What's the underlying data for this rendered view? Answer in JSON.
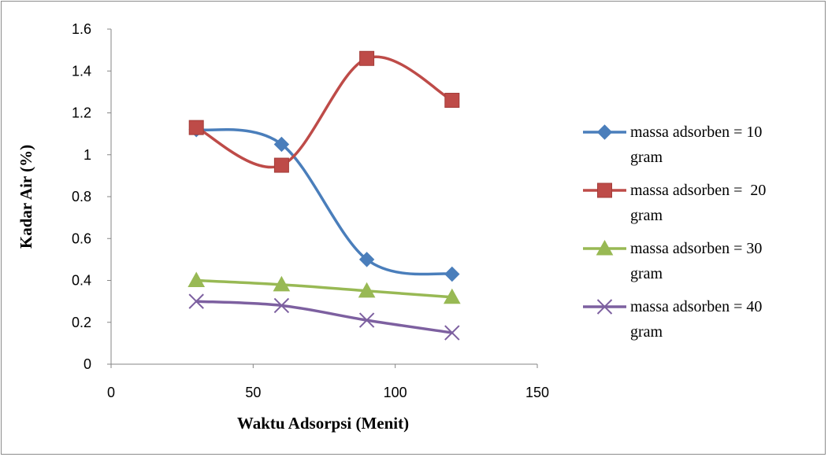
{
  "chart_data": {
    "type": "line",
    "smooth": true,
    "title": "",
    "xlabel": "Waktu Adsorpsi (Menit)",
    "ylabel": "Kadar Air (%)",
    "xlim": [
      0,
      150
    ],
    "ylim": [
      0,
      1.6
    ],
    "xticks": [
      0,
      50,
      100,
      150
    ],
    "yticks": [
      0,
      0.2,
      0.4,
      0.6,
      0.8,
      1,
      1.2,
      1.4,
      1.6
    ],
    "xtick_labels": [
      "0",
      "50",
      "100",
      "150"
    ],
    "ytick_labels": [
      "0",
      "0.2",
      "0.4",
      "0.6",
      "0.8",
      "1",
      "1.2",
      "1.4",
      "1.6"
    ],
    "grid": false,
    "legend_position": "right",
    "x": [
      30,
      60,
      90,
      120
    ],
    "series": [
      {
        "name_lines": [
          "massa adsorben = 10",
          "gram"
        ],
        "color": "#4a7ebb",
        "marker": "diamond",
        "values": [
          1.12,
          1.05,
          0.5,
          0.43
        ]
      },
      {
        "name_lines": [
          "massa adsorben =  20",
          "gram"
        ],
        "color": "#be4b48",
        "marker": "square",
        "values": [
          1.13,
          0.95,
          1.46,
          1.26
        ]
      },
      {
        "name_lines": [
          "massa adsorben = 30",
          "gram"
        ],
        "color": "#98b954",
        "marker": "triangle",
        "values": [
          0.4,
          0.38,
          0.35,
          0.32
        ]
      },
      {
        "name_lines": [
          "massa adsorben = 40",
          "gram"
        ],
        "color": "#7d60a0",
        "marker": "x",
        "values": [
          0.3,
          0.28,
          0.21,
          0.15
        ]
      }
    ]
  }
}
